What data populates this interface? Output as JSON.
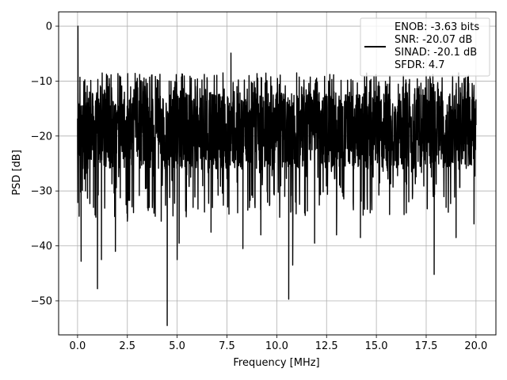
{
  "chart_data": {
    "type": "line",
    "title": "",
    "xlabel": "Frequency [MHz]",
    "ylabel": "PSD [dB]",
    "xlim": [
      -0.95,
      21.0
    ],
    "ylim": [
      -56.2,
      2.6
    ],
    "xticks": [
      0.0,
      2.5,
      5.0,
      7.5,
      10.0,
      12.5,
      15.0,
      17.5,
      20.0
    ],
    "xtick_labels": [
      "0.0",
      "2.5",
      "5.0",
      "7.5",
      "10.0",
      "12.5",
      "15.0",
      "17.5",
      "20.0"
    ],
    "yticks": [
      0,
      -10,
      -20,
      -30,
      -40,
      -50
    ],
    "ytick_labels": [
      "0",
      "−10",
      "−20",
      "−30",
      "−40",
      "−50"
    ],
    "grid": true,
    "legend_position": "top-right",
    "legend_lines": [
      "ENOB: -3.63 bits",
      "SNR: -20.07 dB",
      "SINAD: -20.1 dB",
      "SFDR: 4.7"
    ],
    "line_color": "#000000",
    "series": [
      {
        "name": "",
        "band": {
          "x_start": 0.0,
          "x_end": 20.0,
          "typical_upper": -12,
          "typical_lower": -26,
          "max": -4.9,
          "min": -54.5
        },
        "points": [
          [
            0.0,
            -18.5
          ],
          [
            0.02,
            0.0
          ],
          [
            0.05,
            -20.0
          ],
          [
            0.08,
            -34.6
          ],
          [
            0.12,
            -9.3
          ],
          [
            0.18,
            -42.8
          ],
          [
            0.25,
            -14.5
          ],
          [
            0.4,
            -30.0
          ],
          [
            0.6,
            -12.0
          ],
          [
            0.8,
            -33.0
          ],
          [
            1.0,
            -47.8
          ],
          [
            1.15,
            -11.5
          ],
          [
            1.2,
            -42.5
          ],
          [
            1.6,
            -10.5
          ],
          [
            1.9,
            -41.0
          ],
          [
            2.5,
            -35.5
          ],
          [
            3.0,
            -9.5
          ],
          [
            3.6,
            -33.0
          ],
          [
            4.2,
            -35.5
          ],
          [
            4.5,
            -54.5
          ],
          [
            4.6,
            -10.0
          ],
          [
            5.0,
            -42.5
          ],
          [
            5.1,
            -39.5
          ],
          [
            5.5,
            -12.5
          ],
          [
            5.8,
            -33.0
          ],
          [
            6.7,
            -37.5
          ],
          [
            7.3,
            -8.5
          ],
          [
            7.7,
            -4.9
          ],
          [
            8.0,
            -11.0
          ],
          [
            8.3,
            -40.5
          ],
          [
            9.2,
            -38.0
          ],
          [
            10.4,
            -31.0
          ],
          [
            10.6,
            -49.7
          ],
          [
            10.8,
            -43.5
          ],
          [
            11.0,
            -8.5
          ],
          [
            11.4,
            -34.0
          ],
          [
            11.9,
            -39.5
          ],
          [
            12.6,
            -10.0
          ],
          [
            13.0,
            -38.0
          ],
          [
            14.2,
            -38.5
          ],
          [
            15.5,
            -11.0
          ],
          [
            16.5,
            -34.0
          ],
          [
            17.5,
            -9.0
          ],
          [
            17.9,
            -45.2
          ],
          [
            18.5,
            -33.0
          ],
          [
            19.0,
            -38.5
          ],
          [
            19.9,
            -36.0
          ],
          [
            20.0,
            -18.0
          ]
        ]
      }
    ]
  }
}
